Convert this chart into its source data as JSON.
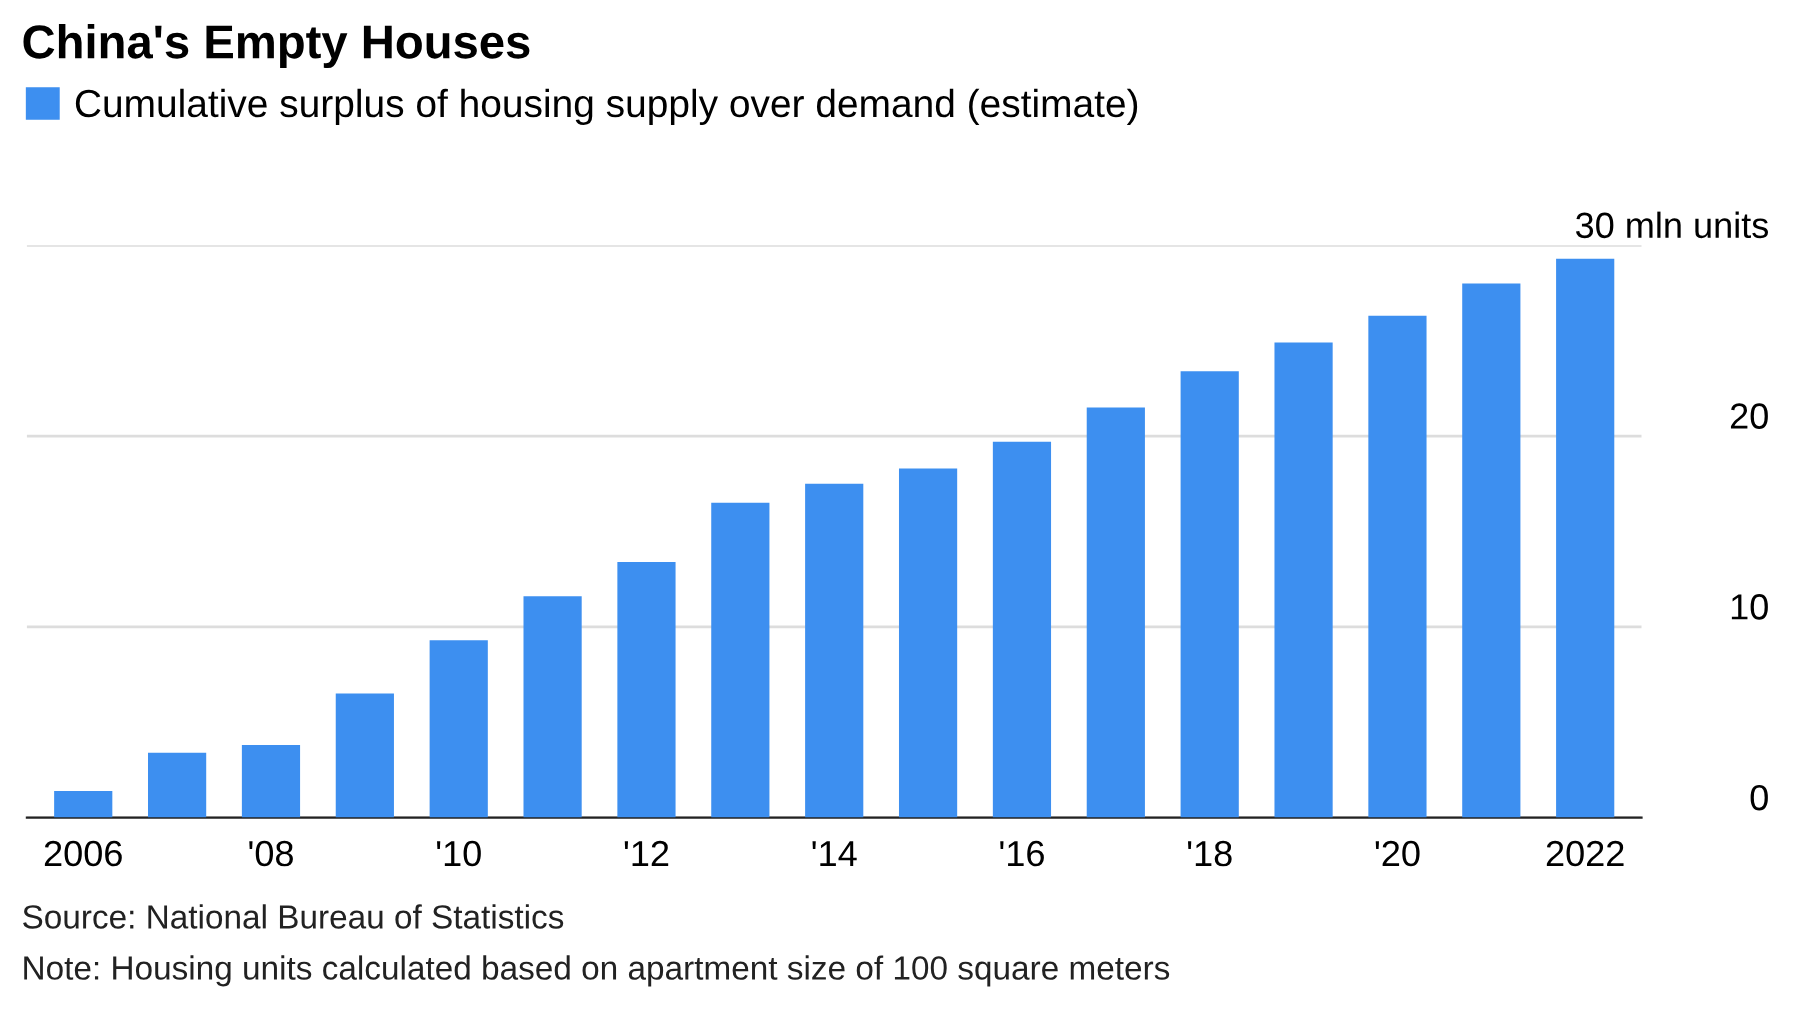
{
  "chart_data": {
    "type": "bar",
    "title": "China's Empty Houses",
    "categories": [
      "2006",
      null,
      "'08",
      null,
      "'10",
      null,
      "'12",
      null,
      "'14",
      null,
      "'16",
      null,
      "'18",
      null,
      "'20",
      null,
      "2022"
    ],
    "series": [
      {
        "name": "Cumulative surplus of housing supply over demand (estimate)",
        "color": "#3d8ff0",
        "values": [
          1.4,
          3.4,
          3.8,
          6.5,
          9.3,
          11.6,
          13.4,
          16.5,
          17.5,
          18.3,
          19.7,
          21.5,
          23.4,
          24.9,
          26.3,
          28.0,
          29.3
        ]
      }
    ],
    "ylim": [
      0,
      30
    ],
    "yticks": [
      0,
      10,
      20,
      {
        "value": 30,
        "label": "30 mln units"
      }
    ],
    "grid": "y",
    "legend": "top left",
    "annotations": [
      "Source: National Bureau of Statistics",
      "Note: Housing units calculated based on apartment size of 100 square meters"
    ]
  }
}
